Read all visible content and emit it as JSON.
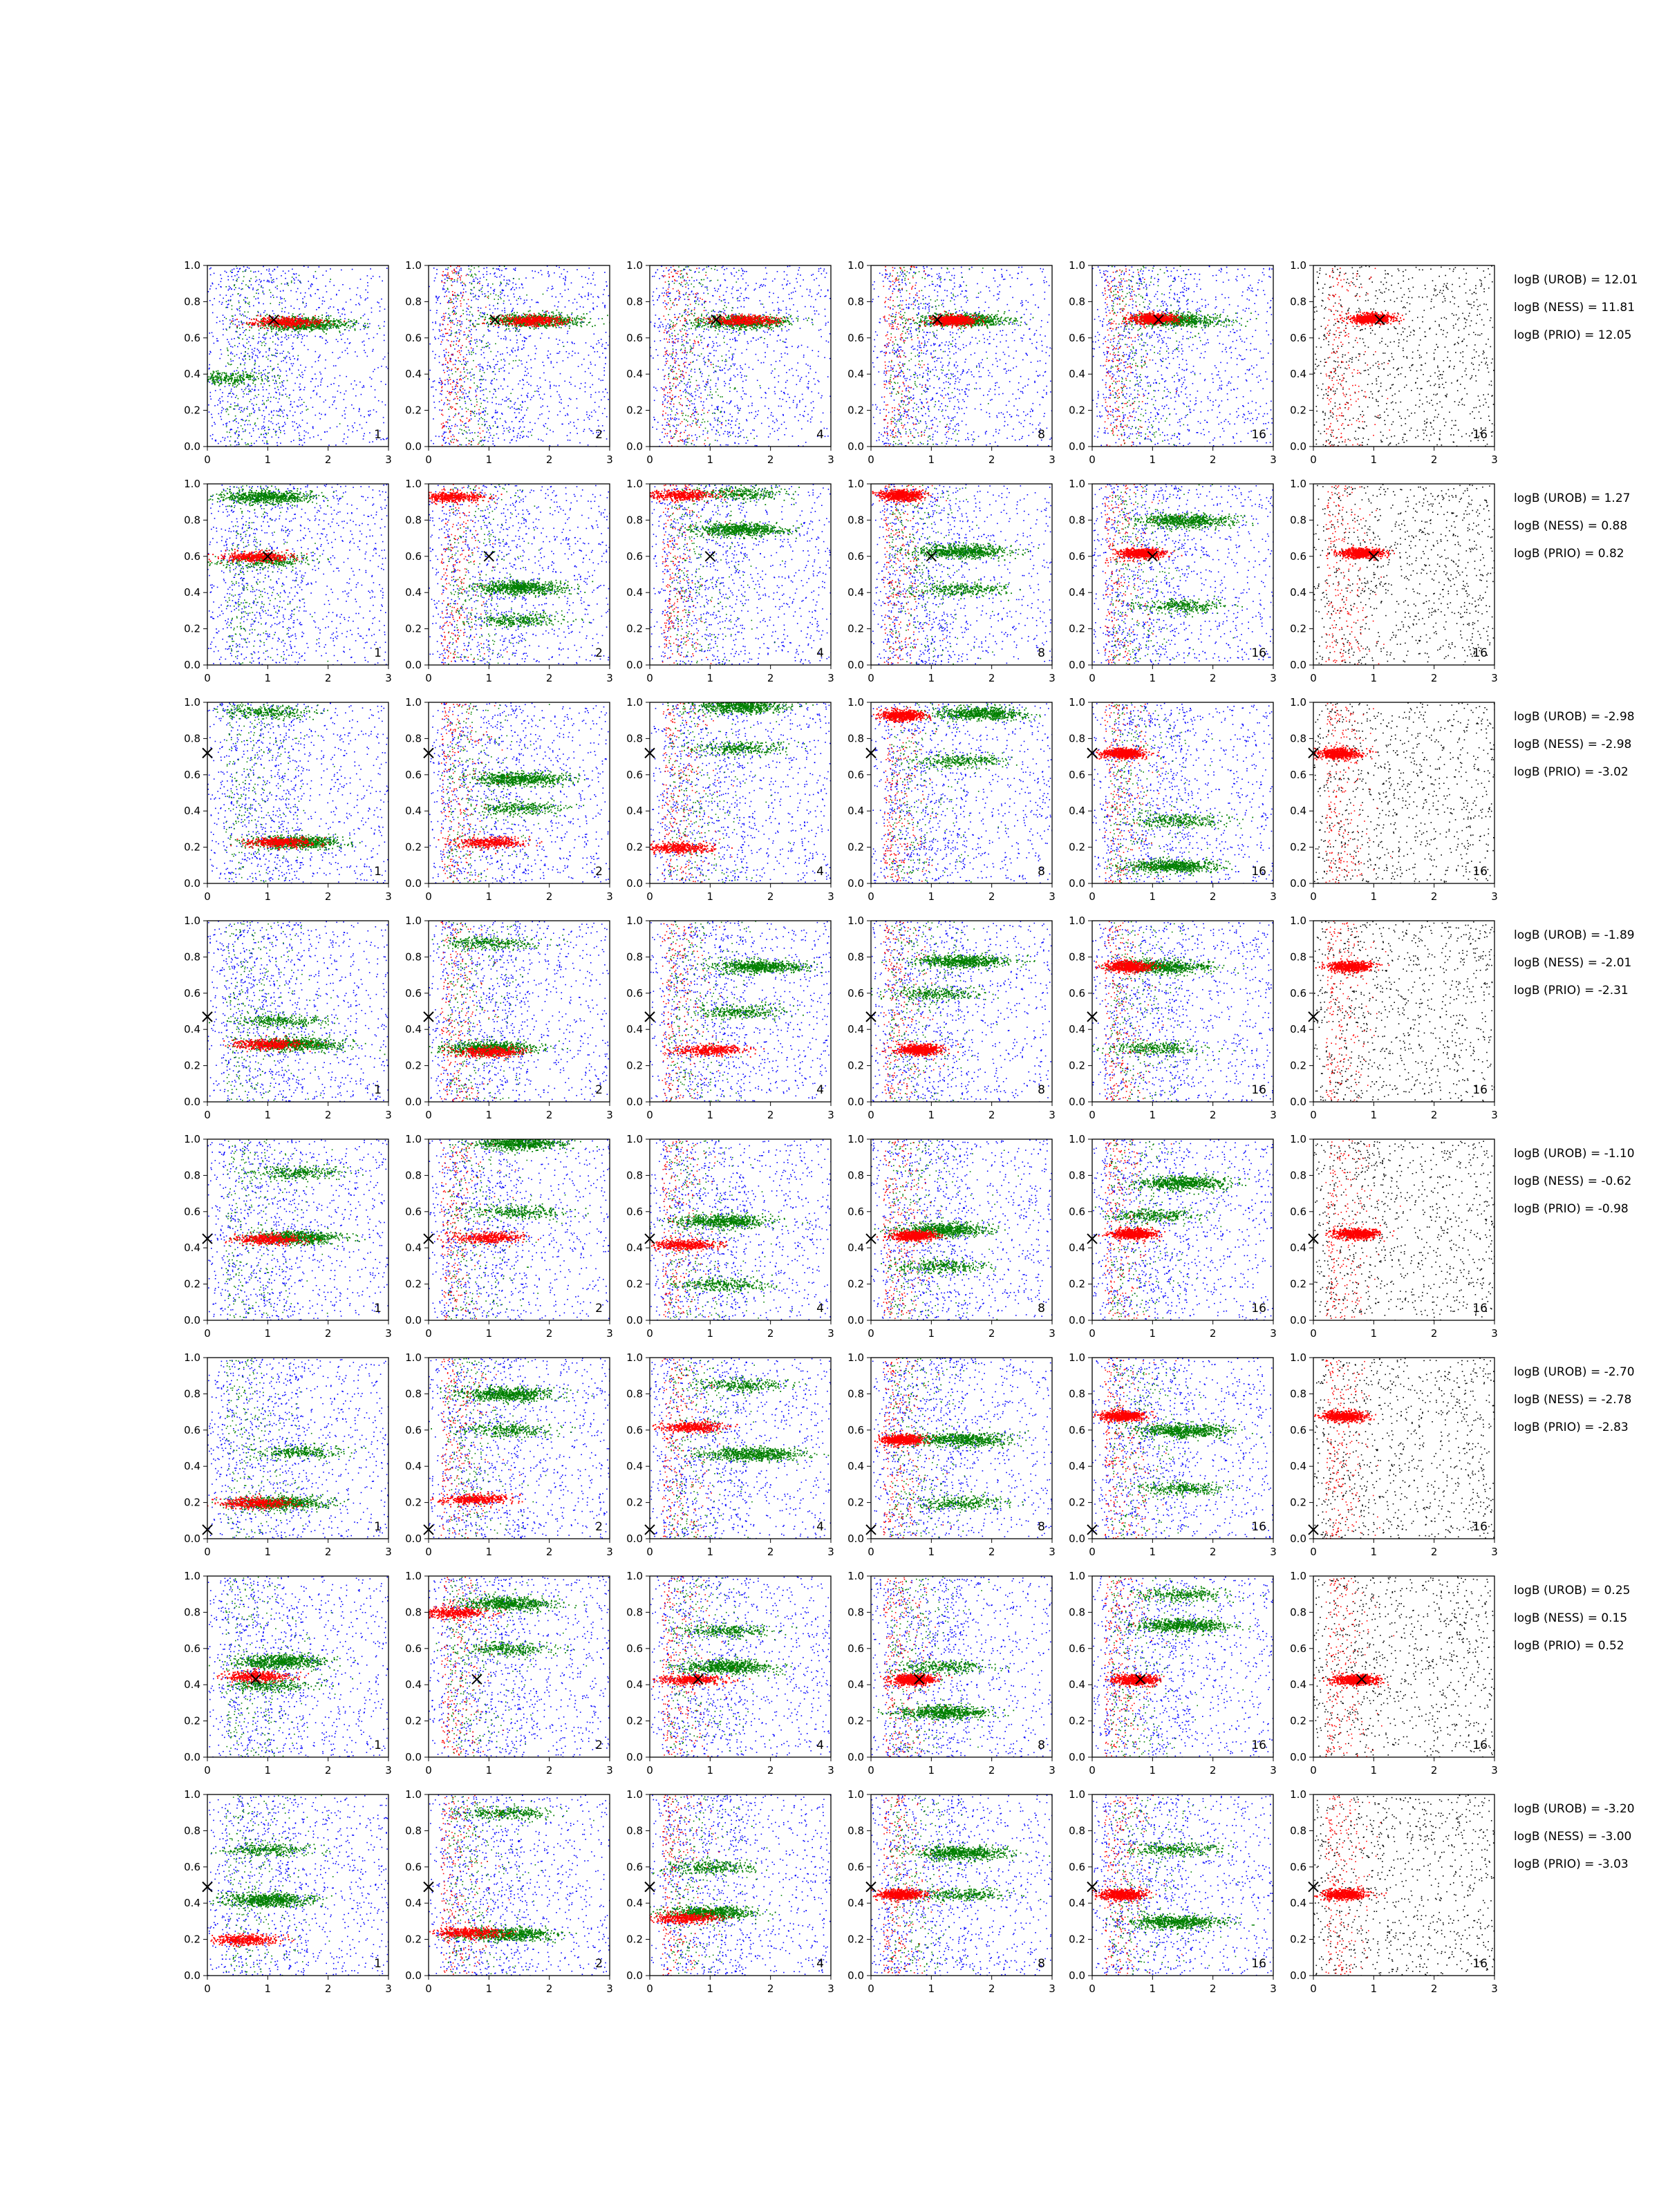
{
  "colors": {
    "blue": "#0000ff",
    "green": "#008000",
    "red": "#ff0000",
    "black": "#000000",
    "marker": "#000000"
  },
  "chart_data": {
    "type": "scatter",
    "xlim": [
      0,
      3
    ],
    "ylim": [
      0,
      1
    ],
    "xticks": [
      "0",
      "1",
      "2",
      "3"
    ],
    "yticks": [
      "0.0",
      "0.2",
      "0.4",
      "0.6",
      "0.8",
      "1.0"
    ],
    "grid": false,
    "legend": "none",
    "column_labels": [
      "1",
      "2",
      "4",
      "8",
      "16",
      "16"
    ],
    "rows": [
      {
        "marker": [
          1.1,
          0.7
        ],
        "green": [
          [
            1.6,
            0.68
          ],
          [
            1.75,
            0.7
          ],
          [
            1.5,
            0.69
          ],
          [
            1.55,
            0.7
          ],
          [
            1.4,
            0.7
          ],
          [
            1.4,
            0.71
          ]
        ],
        "red": [
          [
            1.3,
            0.69
          ],
          [
            1.7,
            0.7
          ],
          [
            1.55,
            0.7
          ],
          [
            1.35,
            0.7
          ],
          [
            1.0,
            0.71
          ],
          [
            0.95,
            0.71
          ]
        ],
        "extra_green": [
          [
            0.3,
            0.38
          ]
        ],
        "logB": [
          "logB (UROB) = 12.01",
          "logB (NESS) = 11.81",
          "logB (PRIO) = 12.05"
        ]
      },
      {
        "marker": [
          1.0,
          0.6
        ],
        "green": [
          [
            1.0,
            0.93
          ],
          [
            1.5,
            0.43
          ],
          [
            1.5,
            0.75
          ],
          [
            1.5,
            0.63
          ],
          [
            1.5,
            0.8
          ],
          [
            0.8,
            0.62
          ]
        ],
        "red": [
          [
            0.8,
            0.6
          ],
          [
            0.4,
            0.93
          ],
          [
            0.5,
            0.94
          ],
          [
            0.5,
            0.94
          ],
          [
            0.8,
            0.62
          ],
          [
            0.8,
            0.62
          ]
        ],
        "extra_green": [
          [
            1.0,
            0.58
          ],
          [
            1.5,
            0.25
          ],
          [
            1.5,
            0.95
          ],
          [
            1.5,
            0.42
          ],
          [
            1.5,
            0.33
          ],
          [
            0.0,
            0.0
          ]
        ],
        "logB": [
          "logB (UROB) = 1.27",
          "logB (NESS) = 0.88",
          "logB (PRIO) = 0.82"
        ]
      },
      {
        "marker": [
          0.0,
          0.72
        ],
        "green": [
          [
            1.5,
            0.23
          ],
          [
            1.5,
            0.58
          ],
          [
            1.5,
            0.98
          ],
          [
            1.8,
            0.94
          ],
          [
            1.3,
            0.1
          ],
          [
            0.0,
            0.0
          ]
        ],
        "red": [
          [
            1.2,
            0.23
          ],
          [
            1.0,
            0.23
          ],
          [
            0.5,
            0.2
          ],
          [
            0.5,
            0.93
          ],
          [
            0.5,
            0.72
          ],
          [
            0.4,
            0.72
          ]
        ],
        "extra_green": [
          [
            1.0,
            0.95
          ],
          [
            1.5,
            0.42
          ],
          [
            1.5,
            0.75
          ],
          [
            1.5,
            0.68
          ],
          [
            1.4,
            0.35
          ],
          [
            0.0,
            0.0
          ]
        ],
        "logB": [
          "logB (UROB) = -2.98",
          "logB (NESS) = -2.98",
          "logB (PRIO) = -3.02"
        ]
      },
      {
        "marker": [
          0.0,
          0.47
        ],
        "green": [
          [
            1.5,
            0.32
          ],
          [
            1.0,
            0.3
          ],
          [
            1.8,
            0.75
          ],
          [
            1.5,
            0.78
          ],
          [
            1.2,
            0.75
          ],
          [
            0.0,
            0.0
          ]
        ],
        "red": [
          [
            1.0,
            0.32
          ],
          [
            1.0,
            0.28
          ],
          [
            1.0,
            0.29
          ],
          [
            0.8,
            0.29
          ],
          [
            0.6,
            0.75
          ],
          [
            0.6,
            0.75
          ]
        ],
        "extra_green": [
          [
            1.2,
            0.45
          ],
          [
            1.0,
            0.88
          ],
          [
            1.5,
            0.5
          ],
          [
            1.0,
            0.6
          ],
          [
            1.0,
            0.3
          ],
          [
            0.0,
            0.0
          ]
        ],
        "logB": [
          "logB (UROB) = -1.89",
          "logB (NESS) = -2.01",
          "logB (PRIO) = -2.31"
        ]
      },
      {
        "marker": [
          0.0,
          0.45
        ],
        "green": [
          [
            1.5,
            0.46
          ],
          [
            1.5,
            0.98
          ],
          [
            1.2,
            0.55
          ],
          [
            1.2,
            0.5
          ],
          [
            1.5,
            0.76
          ],
          [
            0.0,
            0.0
          ]
        ],
        "red": [
          [
            1.0,
            0.45
          ],
          [
            1.0,
            0.46
          ],
          [
            0.6,
            0.42
          ],
          [
            0.7,
            0.47
          ],
          [
            0.7,
            0.48
          ],
          [
            0.7,
            0.48
          ]
        ],
        "extra_green": [
          [
            1.5,
            0.82
          ],
          [
            1.5,
            0.6
          ],
          [
            1.2,
            0.2
          ],
          [
            1.2,
            0.3
          ],
          [
            1.0,
            0.58
          ],
          [
            0.0,
            0.0
          ]
        ],
        "logB": [
          "logB (UROB) = -1.10",
          "logB (NESS) = -0.62",
          "logB (PRIO) = -0.98"
        ]
      },
      {
        "marker": [
          0.0,
          0.05
        ],
        "green": [
          [
            1.2,
            0.2
          ],
          [
            1.3,
            0.8
          ],
          [
            1.7,
            0.47
          ],
          [
            1.5,
            0.55
          ],
          [
            1.5,
            0.6
          ],
          [
            0.0,
            0.0
          ]
        ],
        "red": [
          [
            0.8,
            0.2
          ],
          [
            0.8,
            0.22
          ],
          [
            0.7,
            0.62
          ],
          [
            0.5,
            0.55
          ],
          [
            0.5,
            0.68
          ],
          [
            0.5,
            0.68
          ]
        ],
        "extra_green": [
          [
            1.5,
            0.48
          ],
          [
            1.3,
            0.6
          ],
          [
            1.5,
            0.85
          ],
          [
            1.5,
            0.2
          ],
          [
            1.5,
            0.28
          ],
          [
            0.0,
            0.0
          ]
        ],
        "logB": [
          "logB (UROB) = -2.70",
          "logB (NESS) = -2.78",
          "logB (PRIO) = -2.83"
        ]
      },
      {
        "marker": [
          0.8,
          0.43
        ],
        "green": [
          [
            1.2,
            0.53
          ],
          [
            1.3,
            0.85
          ],
          [
            1.3,
            0.5
          ],
          [
            1.2,
            0.25
          ],
          [
            1.5,
            0.73
          ],
          [
            0.0,
            0.0
          ]
        ],
        "red": [
          [
            0.8,
            0.45
          ],
          [
            0.4,
            0.8
          ],
          [
            0.7,
            0.43
          ],
          [
            0.7,
            0.43
          ],
          [
            0.7,
            0.43
          ],
          [
            0.7,
            0.43
          ]
        ],
        "extra_green": [
          [
            1.0,
            0.4
          ],
          [
            1.3,
            0.6
          ],
          [
            1.3,
            0.7
          ],
          [
            1.2,
            0.5
          ],
          [
            1.5,
            0.9
          ],
          [
            0.0,
            0.0
          ]
        ],
        "logB": [
          "logB (UROB) = 0.25",
          "logB (NESS) = 0.15",
          "logB (PRIO) = 0.52"
        ]
      },
      {
        "marker": [
          0.0,
          0.49
        ],
        "green": [
          [
            1.0,
            0.42
          ],
          [
            1.3,
            0.23
          ],
          [
            1.0,
            0.35
          ],
          [
            1.5,
            0.68
          ],
          [
            1.4,
            0.3
          ],
          [
            0.0,
            0.0
          ]
        ],
        "red": [
          [
            0.6,
            0.2
          ],
          [
            0.7,
            0.24
          ],
          [
            0.6,
            0.32
          ],
          [
            0.5,
            0.45
          ],
          [
            0.5,
            0.45
          ],
          [
            0.5,
            0.45
          ]
        ],
        "extra_green": [
          [
            1.0,
            0.7
          ],
          [
            1.3,
            0.9
          ],
          [
            1.0,
            0.6
          ],
          [
            1.5,
            0.45
          ],
          [
            1.4,
            0.7
          ],
          [
            0.0,
            0.0
          ]
        ],
        "logB": [
          "logB (UROB) = -3.20",
          "logB (NESS) = -3.00",
          "logB (PRIO) = -3.03"
        ]
      }
    ]
  }
}
